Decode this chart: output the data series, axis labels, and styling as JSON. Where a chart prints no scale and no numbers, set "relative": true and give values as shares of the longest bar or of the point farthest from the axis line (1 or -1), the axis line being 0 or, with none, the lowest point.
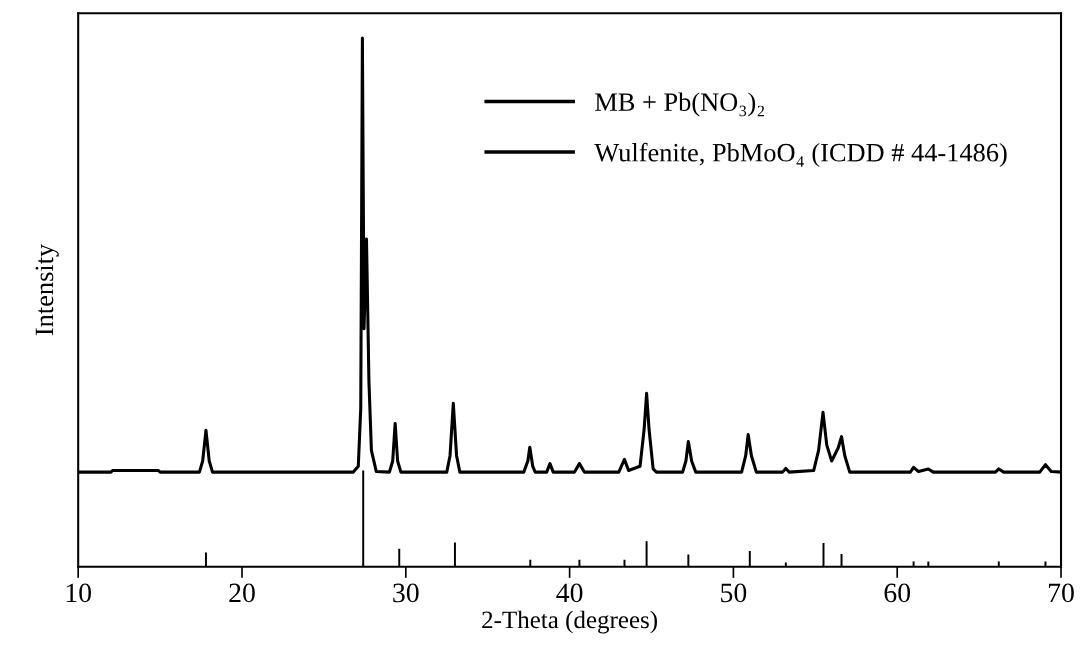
{
  "chart_data": {
    "type": "line",
    "xlabel": "2-Theta (degrees)",
    "ylabel": "Intensity",
    "relative": true,
    "xlim": [
      10,
      70
    ],
    "xticks": [
      10,
      20,
      30,
      40,
      50,
      60,
      70
    ],
    "tick_labels": "x",
    "grid": false,
    "legend": "top right",
    "marker": "none",
    "line_style": "solid",
    "series": [
      {
        "name": "MB + Pb(NO₃)₂",
        "color": "#000000",
        "x": [
          10,
          12,
          12.1,
          14.9,
          15,
          17.4,
          17.6,
          17.8,
          18.0,
          18.2,
          26.8,
          27.1,
          27.25,
          27.35,
          27.45,
          27.6,
          27.75,
          27.9,
          28.2,
          29.0,
          29.2,
          29.35,
          29.5,
          29.7,
          32.5,
          32.7,
          32.9,
          33.1,
          33.3,
          37.2,
          37.45,
          37.57,
          37.75,
          37.9,
          38.6,
          38.8,
          39.0,
          40.3,
          40.6,
          40.9,
          43.0,
          43.35,
          43.6,
          44.3,
          44.55,
          44.7,
          44.85,
          45.1,
          45.3,
          46.9,
          47.1,
          47.25,
          47.45,
          47.7,
          50.5,
          50.75,
          50.9,
          51.1,
          51.4,
          53.0,
          53.2,
          53.4,
          54.9,
          55.2,
          55.47,
          55.7,
          56.0,
          56.4,
          56.6,
          56.8,
          57.1,
          60.8,
          61.0,
          61.3,
          61.9,
          62.2,
          66.0,
          66.2,
          66.5,
          68.7,
          69.05,
          69.4,
          70
        ],
        "values": [
          0.179,
          0.179,
          0.182,
          0.182,
          0.179,
          0.179,
          0.2,
          0.258,
          0.2,
          0.179,
          0.179,
          0.19,
          0.3,
          1.0,
          0.45,
          0.62,
          0.35,
          0.22,
          0.18,
          0.179,
          0.2,
          0.271,
          0.2,
          0.179,
          0.179,
          0.21,
          0.309,
          0.21,
          0.179,
          0.179,
          0.2,
          0.226,
          0.19,
          0.179,
          0.179,
          0.195,
          0.179,
          0.179,
          0.195,
          0.179,
          0.179,
          0.203,
          0.182,
          0.19,
          0.26,
          0.328,
          0.26,
          0.185,
          0.179,
          0.179,
          0.2,
          0.237,
          0.2,
          0.179,
          0.179,
          0.21,
          0.25,
          0.21,
          0.179,
          0.179,
          0.186,
          0.179,
          0.182,
          0.22,
          0.292,
          0.23,
          0.2,
          0.225,
          0.246,
          0.21,
          0.179,
          0.179,
          0.188,
          0.18,
          0.185,
          0.179,
          0.179,
          0.185,
          0.179,
          0.179,
          0.193,
          0.18,
          0.179
        ]
      },
      {
        "name": "Wulfenite, PbMoO₄ (ICDD # 44-1486)",
        "type": "bar",
        "color": "#000000",
        "x": [
          17.8,
          27.4,
          29.6,
          33.0,
          37.6,
          40.6,
          43.35,
          44.7,
          47.25,
          51.0,
          53.2,
          55.5,
          56.6,
          61.0,
          61.9,
          66.2,
          69.05
        ],
        "values": [
          0.027,
          0.182,
          0.034,
          0.046,
          0.013,
          0.013,
          0.013,
          0.048,
          0.023,
          0.03,
          0.008,
          0.045,
          0.024,
          0.01,
          0.01,
          0.01,
          0.01
        ]
      }
    ]
  }
}
